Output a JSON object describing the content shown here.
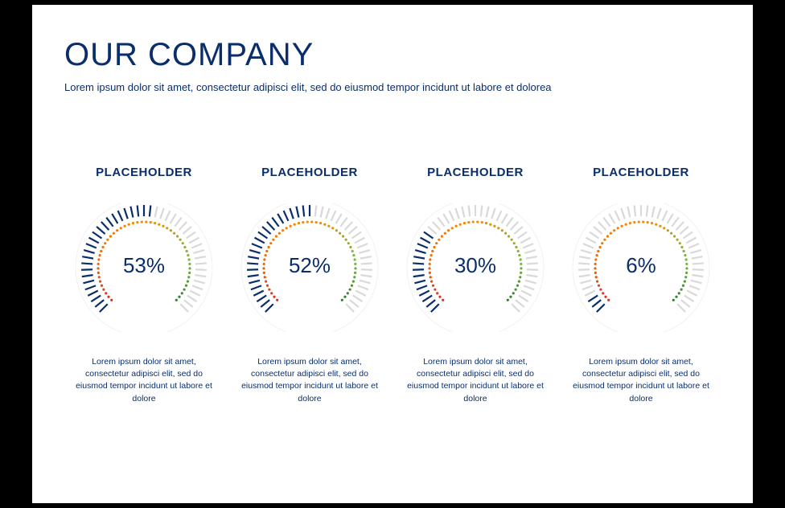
{
  "background_color": "#000000",
  "slide_background": "#ffffff",
  "title": {
    "text": "OUR COMPANY",
    "color": "#0a2e6b",
    "fontsize": 40
  },
  "subtitle": {
    "text": "Lorem ipsum dolor sit amet, consectetur adipisci elit, sed do eiusmod tempor incidunt ut labore et dolorea",
    "color": "#0a2e6b",
    "fontsize": 13
  },
  "gauge_style": {
    "type": "radial-gauge",
    "start_angle_deg": 225,
    "end_angle_deg": -45,
    "sweep_deg": 270,
    "outer_tick_count": 45,
    "outer_tick_length": 14,
    "outer_tick_width": 2.2,
    "outer_radius": 78,
    "inner_dot_count": 50,
    "inner_dot_radius": 1.6,
    "inner_radius": 57,
    "base_circle_stroke": "#f1f1f1",
    "base_circle_width": 1,
    "tick_inactive_color": "#d9d9d9",
    "tick_active_color": "#0a2e6b",
    "dot_gradient": [
      {
        "stop": 0.0,
        "color": "#d32f2f"
      },
      {
        "stop": 0.2,
        "color": "#ef6c00"
      },
      {
        "stop": 0.5,
        "color": "#fb8c00"
      },
      {
        "stop": 0.8,
        "color": "#7cb342"
      },
      {
        "stop": 1.0,
        "color": "#2e7d32"
      }
    ],
    "value_color": "#0a2e6b",
    "value_fontsize": 26
  },
  "gauges": [
    {
      "label": "PLACEHOLDER",
      "value_pct": 53,
      "display": "53%",
      "caption": "Lorem ipsum dolor sit amet, consectetur adipisci elit, sed do eiusmod tempor incidunt ut labore et dolore"
    },
    {
      "label": "PLACEHOLDER",
      "value_pct": 52,
      "display": "52%",
      "caption": "Lorem ipsum dolor sit amet, consectetur adipisci elit, sed do eiusmod tempor incidunt ut labore et dolore"
    },
    {
      "label": "PLACEHOLDER",
      "value_pct": 30,
      "display": "30%",
      "caption": "Lorem ipsum dolor sit amet, consectetur adipisci elit, sed do eiusmod tempor incidunt ut labore et dolore"
    },
    {
      "label": "PLACEHOLDER",
      "value_pct": 6,
      "display": "6%",
      "caption": "Lorem ipsum dolor sit amet, consectetur adipisci elit, sed do eiusmod tempor incidunt ut labore et dolore"
    }
  ]
}
